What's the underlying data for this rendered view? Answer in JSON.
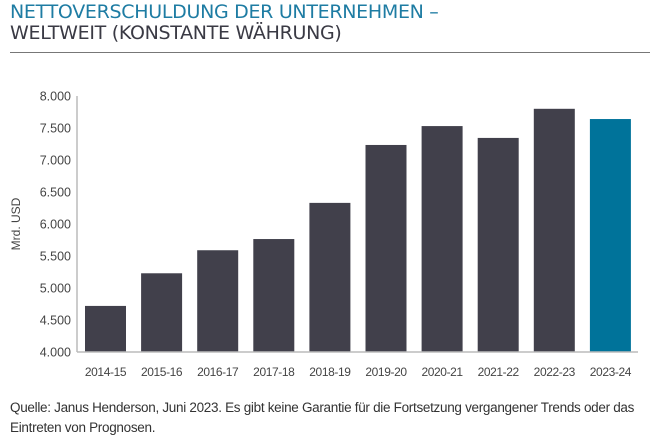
{
  "header": {
    "title_line1": "NETTOVERSCHULDUNG DER UNTERNEHMEN –",
    "title_line2": "WELTWEIT (KONSTANTE WÄHRUNG)"
  },
  "footer": {
    "source": "Quelle: Janus Henderson, Juni 2023. Es gibt keine Garantie für die Fortsetzung vergangener Trends oder das Eintreten von Prognosen."
  },
  "colors": {
    "bar": "#41404b",
    "highlight": "#00739a",
    "title_accent": "#1e7ca3",
    "title_dark": "#3a3a44"
  },
  "chart_data": {
    "type": "bar",
    "title": "NETTOVERSCHULDUNG DER UNTERNEHMEN – WELTWEIT (KONSTANTE WÄHRUNG)",
    "xlabel": "",
    "ylabel": "Mrd. USD",
    "categories": [
      "2014-15",
      "2015-16",
      "2016-17",
      "2017-18",
      "2018-19",
      "2019-20",
      "2020-21",
      "2021-22",
      "2022-23",
      "2023-24"
    ],
    "values": [
      4720,
      5230,
      5590,
      5765,
      6330,
      7235,
      7530,
      7345,
      7800,
      7640
    ],
    "highlight_index": 9,
    "ylim": [
      4000,
      8000
    ],
    "yticks": [
      4000,
      4500,
      5000,
      5500,
      6000,
      6500,
      7000,
      7500,
      8000
    ],
    "ytick_labels": [
      "4.000",
      "4.500",
      "5.000",
      "5.500",
      "6.000",
      "6.500",
      "7.000",
      "7.500",
      "8.000"
    ],
    "grid": false,
    "legend": "none"
  }
}
